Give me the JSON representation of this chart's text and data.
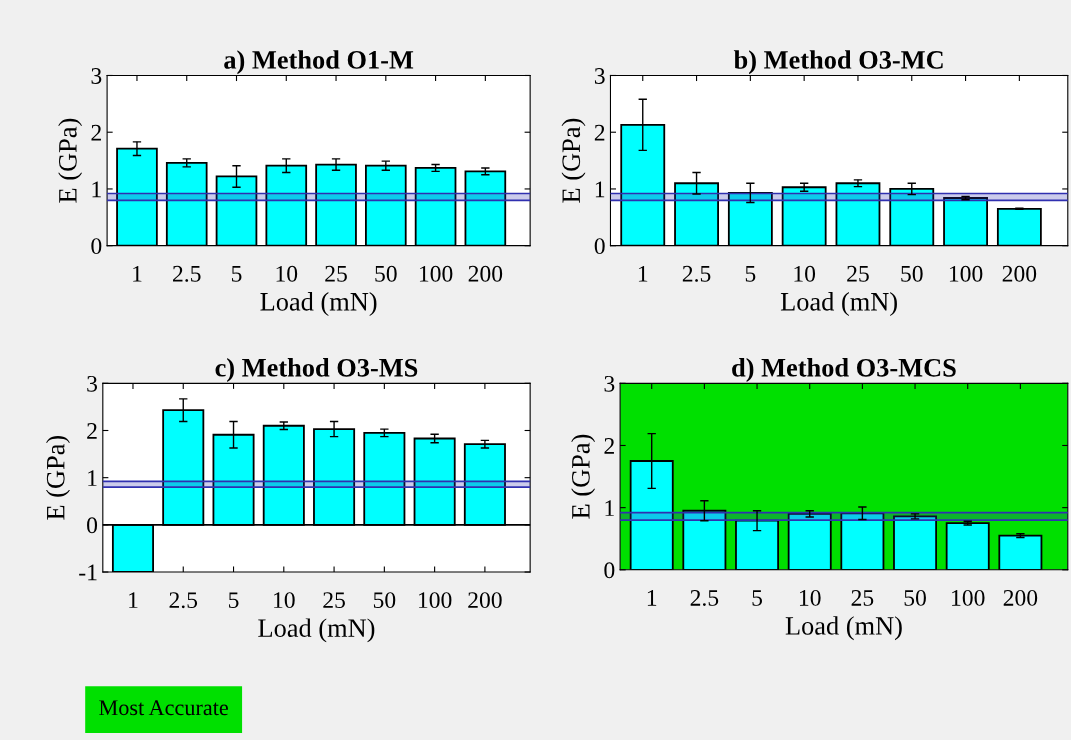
{
  "chart_data": [
    {
      "type": "bar",
      "title": "a) Method O1-M",
      "xlabel": "Load (mN)",
      "ylabel": "E (GPa)",
      "categories": [
        "1",
        "2.5",
        "5",
        "10",
        "25",
        "50",
        "100",
        "200"
      ],
      "values": [
        1.71,
        1.46,
        1.22,
        1.41,
        1.43,
        1.41,
        1.37,
        1.31
      ],
      "errors": [
        0.12,
        0.07,
        0.19,
        0.12,
        0.1,
        0.08,
        0.06,
        0.06
      ],
      "color": "#00ffff",
      "ylim": [
        0,
        3
      ],
      "yticks": [
        0,
        1,
        2,
        3
      ],
      "grid": false,
      "ref_lines": [
        {
          "axis": "y",
          "value": 0.8,
          "color": "#3030b0"
        },
        {
          "axis": "y",
          "value": 0.92,
          "color": "#3030b0"
        }
      ],
      "bands": [
        {
          "axis": "y",
          "from": 0.8,
          "to": 0.92,
          "color": "#3030b0"
        }
      ]
    },
    {
      "type": "bar",
      "title": "b) Method O3-MC",
      "xlabel": "Load (mN)",
      "ylabel": "E (GPa)",
      "categories": [
        "1",
        "2.5",
        "5",
        "10",
        "25",
        "50",
        "100",
        "200"
      ],
      "values": [
        2.13,
        1.1,
        0.93,
        1.03,
        1.1,
        1.0,
        0.84,
        0.65
      ],
      "errors": [
        0.45,
        0.19,
        0.17,
        0.07,
        0.06,
        0.1,
        0.03,
        0.01
      ],
      "color": "#00ffff",
      "ylim": [
        0,
        3
      ],
      "yticks": [
        0,
        1,
        2,
        3
      ],
      "grid": false,
      "ref_lines": [
        {
          "axis": "y",
          "value": 0.8,
          "color": "#3030b0"
        },
        {
          "axis": "y",
          "value": 0.92,
          "color": "#3030b0"
        }
      ],
      "bands": [
        {
          "axis": "y",
          "from": 0.8,
          "to": 0.92,
          "color": "#3030b0"
        }
      ]
    },
    {
      "type": "bar",
      "title": "c) Method O3-MS",
      "xlabel": "Load (mN)",
      "ylabel": "E (GPa)",
      "categories": [
        "1",
        "2.5",
        "5",
        "10",
        "25",
        "50",
        "100",
        "200"
      ],
      "values": [
        -1,
        2.43,
        1.91,
        2.1,
        2.03,
        1.95,
        1.83,
        1.71
      ],
      "errors": [
        null,
        0.24,
        0.28,
        0.08,
        0.16,
        0.08,
        0.09,
        0.08
      ],
      "color": "#00ffff",
      "ylim": [
        -1,
        3
      ],
      "yticks": [
        -1,
        0,
        1,
        2,
        3
      ],
      "grid": false,
      "ref_lines": [
        {
          "axis": "y",
          "value": 0,
          "color": "#000000"
        },
        {
          "axis": "y",
          "value": 0.8,
          "color": "#3030b0"
        },
        {
          "axis": "y",
          "value": 0.92,
          "color": "#3030b0"
        }
      ],
      "bands": [
        {
          "axis": "y",
          "from": 0.8,
          "to": 0.92,
          "color": "#3030b0"
        }
      ]
    },
    {
      "type": "bar",
      "title": "d) Method O3-MCS",
      "xlabel": "Load (mN)",
      "ylabel": "E (GPa)",
      "categories": [
        "1",
        "2.5",
        "5",
        "10",
        "25",
        "50",
        "100",
        "200"
      ],
      "values": [
        1.75,
        0.95,
        0.79,
        0.9,
        0.91,
        0.86,
        0.75,
        0.55
      ],
      "errors": [
        0.44,
        0.16,
        0.16,
        0.05,
        0.1,
        0.04,
        0.03,
        0.03
      ],
      "color": "#00ffff",
      "ylim": [
        0,
        3
      ],
      "yticks": [
        0,
        1,
        2,
        3
      ],
      "grid": false,
      "ref_lines": [
        {
          "axis": "y",
          "value": 0.8,
          "color": "#3030b0"
        },
        {
          "axis": "y",
          "value": 0.92,
          "color": "#3030b0"
        }
      ],
      "annotations": [
        "Most Accurate"
      ],
      "bands": [
        {
          "axis": "y",
          "from": 0,
          "to": 3,
          "color": "#00e000"
        },
        {
          "axis": "y",
          "from": 0.8,
          "to": 0.92,
          "color": "#3030b0"
        }
      ]
    }
  ]
}
